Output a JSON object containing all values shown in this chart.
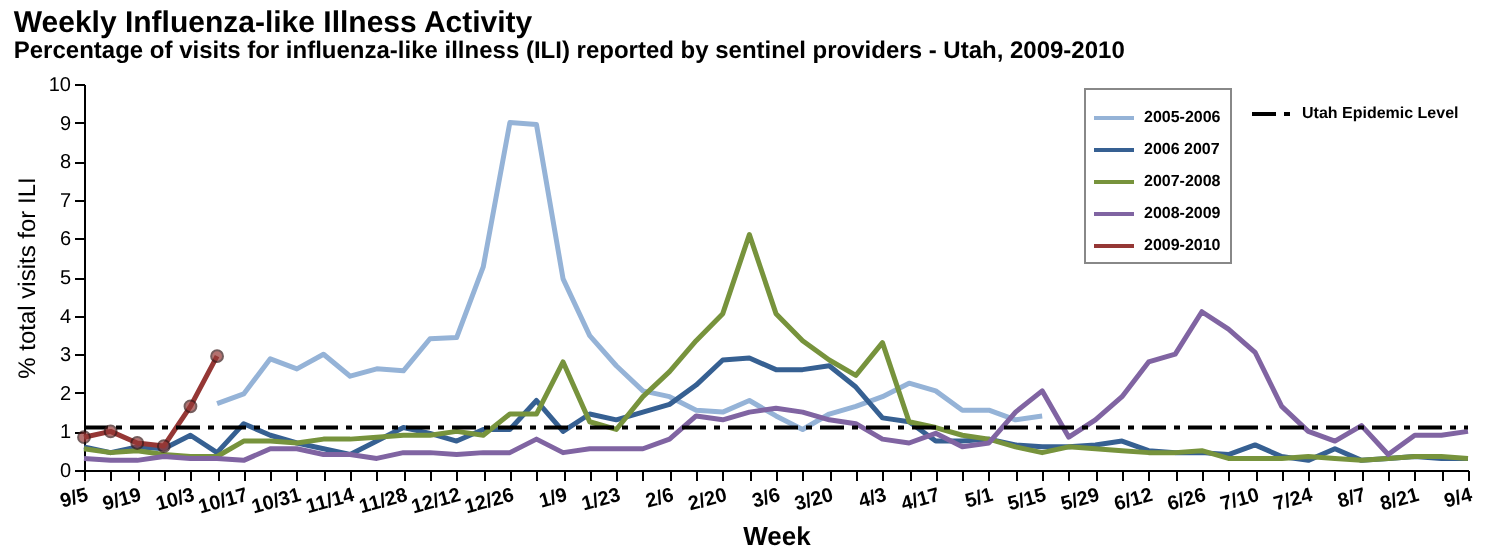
{
  "chart_data": {
    "type": "line",
    "title": "Weekly Influenza-like Illness Activity",
    "subtitle": "Percentage of visits for influenza-like illness (ILI) reported by sentinel providers - Utah, 2009-2010",
    "xlabel": "Week",
    "ylabel": "% total visits for ILI",
    "categories": [
      "9/5",
      null,
      "9/19",
      null,
      "10/3",
      null,
      "10/17",
      null,
      "10/31",
      null,
      "11/14",
      null,
      "11/28",
      null,
      "12/12",
      null,
      "12/26",
      null,
      "1/9",
      null,
      "1/23",
      null,
      "2/6",
      null,
      "2/20",
      null,
      "3/6",
      null,
      "3/20",
      null,
      "4/3",
      null,
      "4/17",
      null,
      "5/1",
      null,
      "5/15",
      null,
      "5/29",
      null,
      "6/12",
      null,
      "6/26",
      null,
      "7/10",
      null,
      "7/24",
      null,
      "8/7",
      null,
      "8/21",
      null,
      "9/4"
    ],
    "series": [
      {
        "name": "2005-2006",
        "color": "#95b3d7",
        "values": [
          null,
          null,
          null,
          null,
          null,
          1.72,
          1.97,
          2.88,
          2.62,
          3.0,
          2.43,
          2.62,
          2.57,
          3.4,
          3.43,
          5.26,
          9.0,
          8.95,
          4.95,
          3.48,
          2.7,
          2.05,
          1.9,
          1.55,
          1.5,
          1.8,
          1.4,
          1.05,
          1.45,
          1.65,
          1.9,
          2.25,
          2.05,
          1.55,
          1.55,
          1.3,
          1.4,
          null,
          null,
          null,
          null,
          null,
          null,
          null,
          null,
          null,
          null,
          null,
          null,
          null,
          null,
          null,
          null
        ]
      },
      {
        "name": "2006 2007",
        "color": "#366092",
        "values": [
          0.6,
          0.45,
          0.6,
          0.55,
          0.9,
          0.45,
          1.2,
          0.9,
          0.7,
          0.55,
          0.4,
          0.75,
          1.1,
          0.95,
          0.75,
          1.05,
          1.05,
          1.8,
          1.0,
          1.45,
          1.3,
          1.5,
          1.7,
          2.2,
          2.85,
          2.9,
          2.6,
          2.6,
          2.7,
          2.15,
          1.35,
          1.25,
          0.75,
          0.75,
          0.8,
          0.65,
          0.6,
          0.6,
          0.65,
          0.75,
          0.5,
          0.45,
          0.45,
          0.4,
          0.65,
          0.35,
          0.25,
          0.55,
          0.25,
          0.3,
          0.35,
          0.3,
          0.3
        ]
      },
      {
        "name": "2007-2008",
        "color": "#77933c",
        "values": [
          0.55,
          0.45,
          0.5,
          0.4,
          0.35,
          0.35,
          0.75,
          0.75,
          0.7,
          0.8,
          0.8,
          0.85,
          0.9,
          0.9,
          1.0,
          0.9,
          1.45,
          1.45,
          2.8,
          1.25,
          1.05,
          1.9,
          2.55,
          3.35,
          4.05,
          6.1,
          4.05,
          3.35,
          2.85,
          2.45,
          3.3,
          1.25,
          1.1,
          0.9,
          0.8,
          0.6,
          0.45,
          0.6,
          0.55,
          0.5,
          0.45,
          0.45,
          0.5,
          0.3,
          0.3,
          0.3,
          0.35,
          0.3,
          0.25,
          0.3,
          0.35,
          0.35,
          0.3
        ]
      },
      {
        "name": "2008-2009",
        "color": "#8064a2",
        "values": [
          0.3,
          0.25,
          0.25,
          0.35,
          0.3,
          0.3,
          0.25,
          0.55,
          0.55,
          0.4,
          0.4,
          0.3,
          0.45,
          0.45,
          0.4,
          0.45,
          0.45,
          0.8,
          0.45,
          0.55,
          0.55,
          0.55,
          0.8,
          1.4,
          1.3,
          1.5,
          1.6,
          1.5,
          1.3,
          1.2,
          0.8,
          0.7,
          0.95,
          0.6,
          0.7,
          1.5,
          2.05,
          0.85,
          1.3,
          1.9,
          2.8,
          3.0,
          4.1,
          3.65,
          3.05,
          1.65,
          1.0,
          0.75,
          1.15,
          0.4,
          0.9,
          0.9,
          1.0
        ]
      },
      {
        "name": "2009-2010",
        "color": "#953735",
        "marker": "circle",
        "values": [
          0.85,
          1.0,
          0.7,
          0.62,
          1.65,
          2.95,
          null,
          null,
          null,
          null,
          null,
          null,
          null,
          null,
          null,
          null,
          null,
          null,
          null,
          null,
          null,
          null,
          null,
          null,
          null,
          null,
          null,
          null,
          null,
          null,
          null,
          null,
          null,
          null,
          null,
          null,
          null,
          null,
          null,
          null,
          null,
          null,
          null,
          null,
          null,
          null,
          null,
          null,
          null,
          null,
          null,
          null,
          null
        ]
      }
    ],
    "ref_lines": [
      {
        "axis": "y",
        "value": 1.1,
        "label": "Utah Epidemic Level",
        "color": "#000000",
        "line_style": "dashed"
      }
    ],
    "ylim": [
      0,
      10
    ],
    "yticks": [
      0,
      1,
      2,
      3,
      4,
      5,
      6,
      7,
      8,
      9,
      10
    ],
    "grid": false,
    "legend": "top right"
  }
}
